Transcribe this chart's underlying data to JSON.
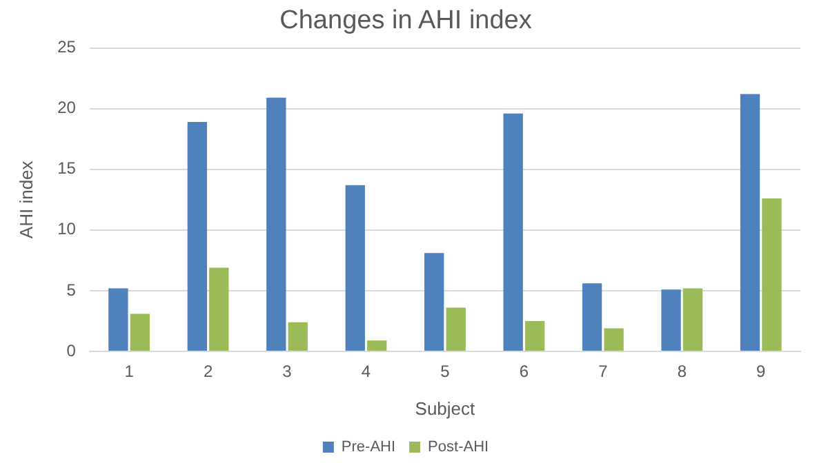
{
  "chart_data": {
    "type": "bar",
    "title": "Changes in AHI index",
    "xlabel": "Subject",
    "ylabel": "AHI index",
    "categories": [
      "1",
      "2",
      "3",
      "4",
      "5",
      "6",
      "7",
      "8",
      "9"
    ],
    "series": [
      {
        "name": "Pre-AHI",
        "color": "#4f81bd",
        "values": [
          5.2,
          18.9,
          20.9,
          13.7,
          8.1,
          19.6,
          5.6,
          5.1,
          21.2
        ]
      },
      {
        "name": "Post-AHI",
        "color": "#9bbb59",
        "values": [
          3.1,
          6.9,
          2.4,
          0.9,
          3.6,
          2.5,
          1.9,
          5.2,
          12.6
        ]
      }
    ],
    "ylim": [
      0,
      25
    ],
    "yticks": [
      0,
      5,
      10,
      15,
      20,
      25
    ],
    "grid": "y",
    "legend": "bottom"
  }
}
